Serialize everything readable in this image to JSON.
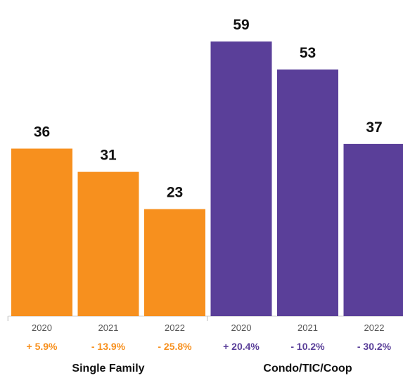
{
  "chart_data": {
    "type": "bar",
    "title": "",
    "xlabel": "",
    "ylabel": "",
    "ylim": [
      0,
      64
    ],
    "grid": false,
    "groups": [
      {
        "name": "Single Family",
        "color": "#F7901E",
        "bars": [
          {
            "year": "2020",
            "value": 36,
            "change": "+ 5.9%"
          },
          {
            "year": "2021",
            "value": 31,
            "change": "- 13.9%"
          },
          {
            "year": "2022",
            "value": 23,
            "change": "- 25.8%"
          }
        ]
      },
      {
        "name": "Condo/TIC/Coop",
        "color": "#5A3F99",
        "bars": [
          {
            "year": "2020",
            "value": 59,
            "change": "+ 20.4%"
          },
          {
            "year": "2021",
            "value": 53,
            "change": "- 10.2%"
          },
          {
            "year": "2022",
            "value": 37,
            "change": "- 30.2%"
          }
        ]
      }
    ]
  }
}
